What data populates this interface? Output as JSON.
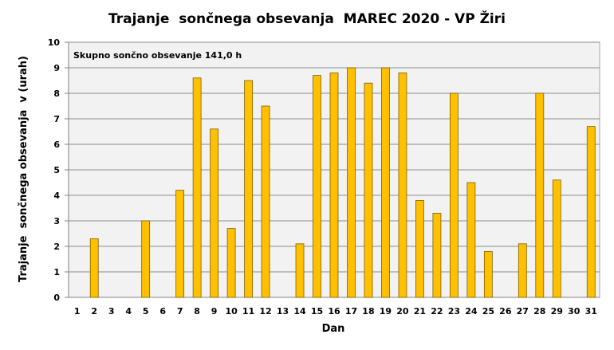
{
  "chart_data": {
    "type": "bar",
    "title": "Trajanje  sončnega obsevanja  MAREC 2020 - VP Žiri",
    "xlabel": "Dan",
    "ylabel": "Trajanje  sončnega obsevanja  v (urah)",
    "annotation": "Skupno sončno obsevanje 141,0 h",
    "categories": [
      "1",
      "2",
      "3",
      "4",
      "5",
      "6",
      "7",
      "8",
      "9",
      "10",
      "11",
      "12",
      "13",
      "14",
      "15",
      "16",
      "17",
      "18",
      "19",
      "20",
      "21",
      "22",
      "23",
      "24",
      "25",
      "26",
      "27",
      "28",
      "29",
      "30",
      "31"
    ],
    "values": [
      0,
      2.3,
      0,
      0,
      3.0,
      0,
      4.2,
      8.6,
      6.6,
      2.7,
      8.5,
      7.5,
      0,
      2.1,
      8.7,
      8.8,
      9.0,
      8.4,
      9.0,
      8.8,
      3.8,
      3.3,
      8.0,
      4.5,
      1.8,
      0,
      2.1,
      8.0,
      4.6,
      0,
      6.7
    ],
    "ylim": [
      0,
      10
    ],
    "yticks": [
      "0",
      "1",
      "2",
      "3",
      "4",
      "5",
      "6",
      "7",
      "8",
      "9",
      "10"
    ],
    "grid": true,
    "bar_color": "#FFC000",
    "bar_edge_color": "#7F6000",
    "plot_background": "#F2F2F2"
  }
}
